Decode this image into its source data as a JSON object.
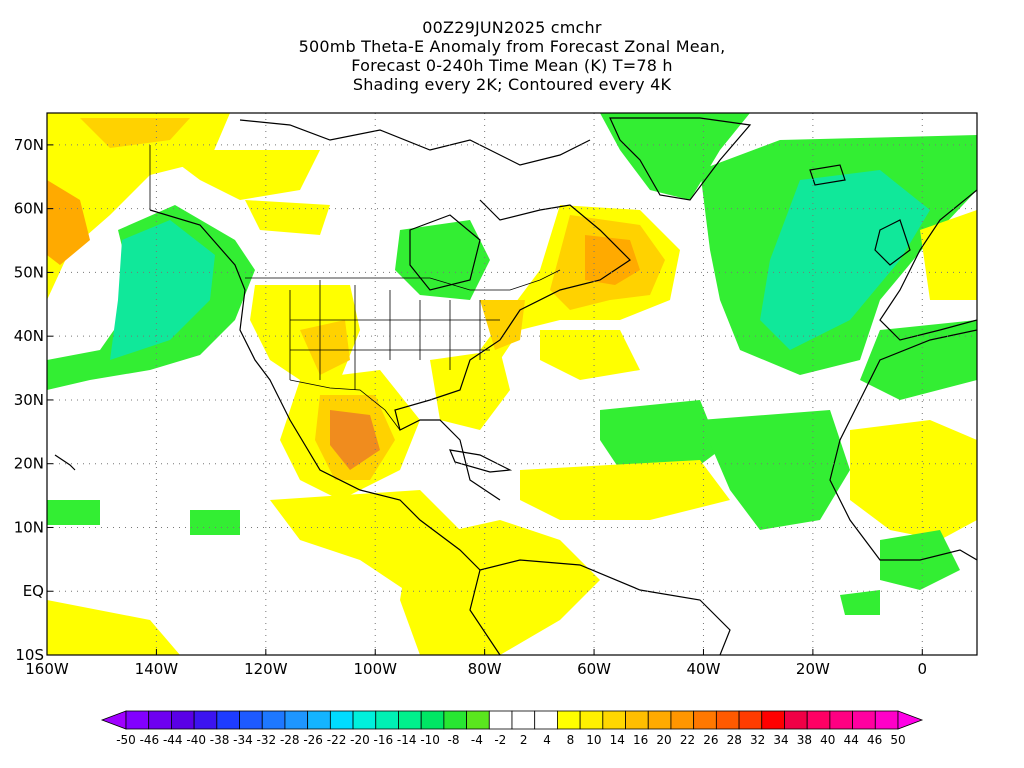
{
  "titles": [
    "00Z29JUN2025 cmchr",
    "500mb Theta-E Anomaly from Forecast Zonal Mean,",
    "Forecast 0-240h Time Mean (K) T=78 h",
    "Shading every 2K; Contoured every 4K"
  ],
  "map": {
    "lon_range": [
      -160,
      10
    ],
    "lat_range": [
      -10,
      75
    ],
    "lat_ticks": [
      {
        "value": 70,
        "label": "70N"
      },
      {
        "value": 60,
        "label": "60N"
      },
      {
        "value": 50,
        "label": "50N"
      },
      {
        "value": 40,
        "label": "40N"
      },
      {
        "value": 30,
        "label": "30N"
      },
      {
        "value": 20,
        "label": "20N"
      },
      {
        "value": 10,
        "label": "10N"
      },
      {
        "value": 0,
        "label": "EQ"
      },
      {
        "value": -10,
        "label": "10S"
      }
    ],
    "lon_ticks": [
      {
        "value": -160,
        "label": "160W"
      },
      {
        "value": -140,
        "label": "140W"
      },
      {
        "value": -120,
        "label": "120W"
      },
      {
        "value": -100,
        "label": "100W"
      },
      {
        "value": -80,
        "label": "80W"
      },
      {
        "value": -60,
        "label": "60W"
      },
      {
        "value": -40,
        "label": "40W"
      },
      {
        "value": -20,
        "label": "20W"
      },
      {
        "value": 0,
        "label": "0"
      }
    ],
    "grid": "dotted"
  },
  "colorbar": {
    "labels": [
      "-50",
      "-46",
      "-44",
      "-40",
      "-38",
      "-34",
      "-32",
      "-28",
      "-26",
      "-22",
      "-20",
      "-16",
      "-14",
      "-10",
      "-8",
      "-4",
      "-2",
      "2",
      "4",
      "8",
      "10",
      "14",
      "16",
      "20",
      "22",
      "26",
      "28",
      "32",
      "34",
      "38",
      "40",
      "44",
      "46",
      "50"
    ],
    "colors": [
      "#a000ff",
      "#8200ff",
      "#6e00f0",
      "#5a00e6",
      "#3c14f0",
      "#1e3cff",
      "#1e5aff",
      "#1e78ff",
      "#1e96ff",
      "#14b4ff",
      "#00dcff",
      "#00f0dc",
      "#00f0b4",
      "#00f08c",
      "#00e664",
      "#28e632",
      "#5ae61e",
      "#ffffff",
      "#ffffff",
      "#ffffff",
      "#ffff00",
      "#fff000",
      "#ffd700",
      "#ffbe00",
      "#ffaa00",
      "#ff9600",
      "#ff7800",
      "#ff5a00",
      "#ff3c00",
      "#ff0000",
      "#f00046",
      "#ff0064",
      "#ff0082",
      "#ff00a0",
      "#ff00c8",
      "#ff00e6"
    ]
  },
  "anomaly_colors": {
    "green": "#33ee33",
    "teal": "#10e89a",
    "yellow": "#ffff00",
    "gold": "#ffd200",
    "orange": "#ffaa00",
    "dark_orange": "#f08c1e"
  }
}
